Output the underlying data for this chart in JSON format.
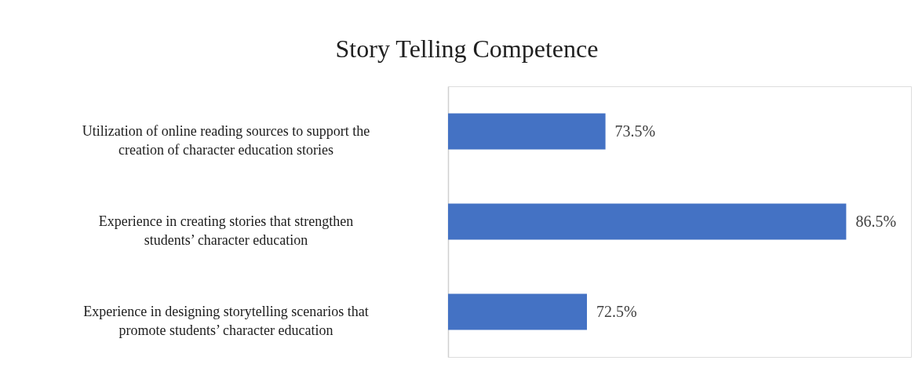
{
  "chart_data": {
    "type": "bar",
    "orientation": "horizontal",
    "title": "Story Telling Competence",
    "categories": [
      "Utilization of online reading sources to support the creation of character education stories",
      "Experience in creating stories that strengthen students’ character education",
      "Experience in designing storytelling scenarios that promote students’ character education"
    ],
    "values": [
      73.5,
      86.5,
      72.5
    ],
    "value_labels": [
      "73.5%",
      "86.5%",
      "72.5%"
    ],
    "color": "#4472c4",
    "xlim": [
      65,
      90
    ],
    "tick_labels": false
  }
}
